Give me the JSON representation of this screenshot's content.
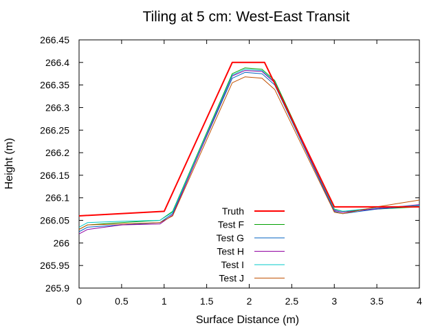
{
  "chart_data": {
    "type": "line",
    "title": "Tiling at 5 cm: West-East Transit",
    "xlabel": "Surface Distance (m)",
    "ylabel": "Height (m)",
    "xlim": [
      0,
      4
    ],
    "ylim": [
      265.9,
      266.45
    ],
    "x_ticks": [
      "0",
      "0.5",
      "1",
      "1.5",
      "2",
      "2.5",
      "3",
      "3.5",
      "4"
    ],
    "y_ticks": [
      "265.9",
      "265.95",
      "266",
      "266.05",
      "266.1",
      "266.15",
      "266.2",
      "266.25",
      "266.3",
      "266.35",
      "266.4",
      "266.45"
    ],
    "grid": false,
    "legend_position": "bottom-center",
    "series": [
      {
        "name": "Truth",
        "color": "#ff0000",
        "points": [
          [
            0,
            266.06
          ],
          [
            1.0,
            266.07
          ],
          [
            1.8,
            266.4
          ],
          [
            2.18,
            266.4
          ],
          [
            3.0,
            266.08
          ],
          [
            3.5,
            266.08
          ],
          [
            4.0,
            266.08
          ]
        ]
      },
      {
        "name": "Test F",
        "color": "#00a000",
        "points": [
          [
            0,
            266.03
          ],
          [
            0.1,
            266.04
          ],
          [
            0.5,
            266.045
          ],
          [
            0.95,
            266.05
          ],
          [
            1.1,
            266.07
          ],
          [
            1.8,
            266.375
          ],
          [
            1.95,
            266.388
          ],
          [
            2.15,
            266.385
          ],
          [
            2.3,
            266.36
          ],
          [
            3.0,
            266.075
          ],
          [
            3.1,
            266.07
          ],
          [
            3.5,
            266.075
          ],
          [
            4.0,
            266.08
          ]
        ]
      },
      {
        "name": "Test G",
        "color": "#0060c0",
        "points": [
          [
            0,
            266.025
          ],
          [
            0.1,
            266.035
          ],
          [
            0.5,
            266.04
          ],
          [
            0.95,
            266.045
          ],
          [
            1.1,
            266.065
          ],
          [
            1.8,
            266.365
          ],
          [
            1.95,
            266.378
          ],
          [
            2.15,
            266.375
          ],
          [
            2.3,
            266.35
          ],
          [
            3.0,
            266.07
          ],
          [
            3.1,
            266.065
          ],
          [
            3.5,
            266.075
          ],
          [
            4.0,
            266.082
          ]
        ]
      },
      {
        "name": "Test H",
        "color": "#9000a0",
        "points": [
          [
            0,
            266.02
          ],
          [
            0.1,
            266.03
          ],
          [
            0.5,
            266.04
          ],
          [
            0.95,
            266.042
          ],
          [
            1.1,
            266.062
          ],
          [
            1.8,
            266.37
          ],
          [
            1.95,
            266.382
          ],
          [
            2.15,
            266.38
          ],
          [
            2.3,
            266.355
          ],
          [
            3.0,
            266.072
          ],
          [
            3.1,
            266.068
          ],
          [
            3.5,
            266.076
          ],
          [
            4.0,
            266.085
          ]
        ]
      },
      {
        "name": "Test I",
        "color": "#00c8c8",
        "points": [
          [
            0,
            266.035
          ],
          [
            0.1,
            266.045
          ],
          [
            0.5,
            266.048
          ],
          [
            0.95,
            266.05
          ],
          [
            1.1,
            266.068
          ],
          [
            1.8,
            266.372
          ],
          [
            1.95,
            266.385
          ],
          [
            2.15,
            266.382
          ],
          [
            2.3,
            266.357
          ],
          [
            3.0,
            266.074
          ],
          [
            3.1,
            266.07
          ],
          [
            3.5,
            266.078
          ],
          [
            4.0,
            266.083
          ]
        ]
      },
      {
        "name": "Test J",
        "color": "#c05000",
        "points": [
          [
            0,
            266.03
          ],
          [
            0.1,
            266.04
          ],
          [
            0.5,
            266.042
          ],
          [
            0.95,
            266.045
          ],
          [
            1.1,
            266.06
          ],
          [
            1.8,
            266.355
          ],
          [
            1.95,
            266.368
          ],
          [
            2.15,
            266.365
          ],
          [
            2.3,
            266.34
          ],
          [
            3.0,
            266.068
          ],
          [
            3.1,
            266.065
          ],
          [
            3.5,
            266.08
          ],
          [
            4.0,
            266.095
          ]
        ]
      }
    ]
  }
}
